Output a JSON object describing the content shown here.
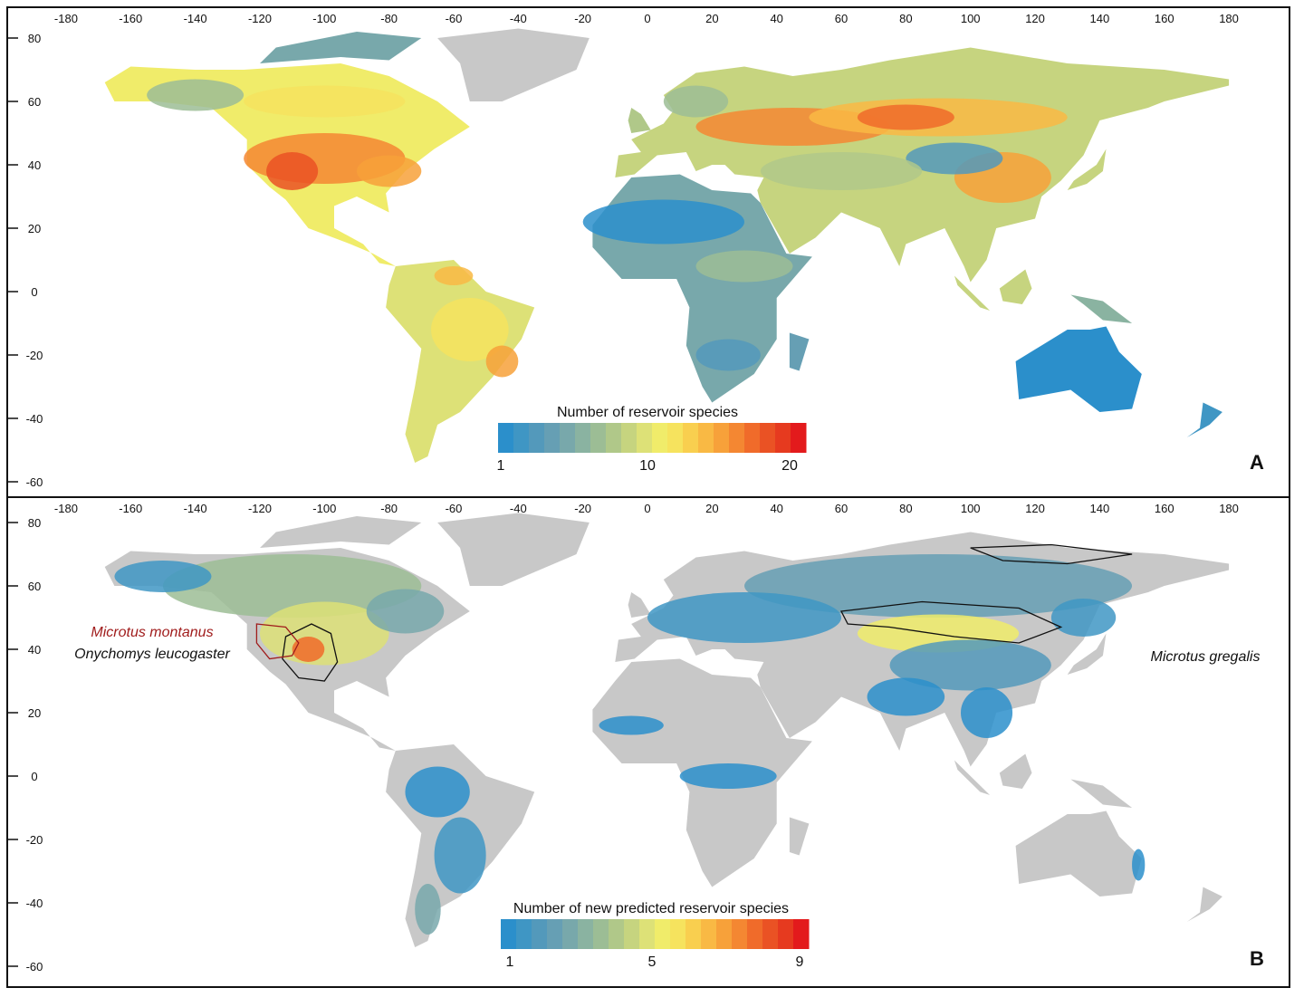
{
  "panels": [
    {
      "letter": "A",
      "legend": {
        "title": "Number of reservoir species",
        "labels": [
          "1",
          "10",
          "20"
        ]
      },
      "species_labels": []
    },
    {
      "letter": "B",
      "legend": {
        "title": "Number of new predicted reservoir species",
        "labels": [
          "1",
          "5",
          "9"
        ]
      },
      "species_labels": [
        {
          "text": "Microtus montanus",
          "color": "#a01c1c"
        },
        {
          "text": "Onychomys leucogaster",
          "color": "#111111"
        },
        {
          "text": "Microtus gregalis",
          "color": "#111111"
        }
      ]
    }
  ],
  "axes": {
    "longitude_ticks": [
      "-180",
      "-160",
      "-140",
      "-120",
      "-100",
      "-80",
      "-60",
      "-40",
      "-20",
      "0",
      "20",
      "40",
      "60",
      "80",
      "100",
      "120",
      "140",
      "160",
      "180"
    ],
    "latitude_ticks": [
      "80",
      "60",
      "40",
      "20",
      "0",
      "-20",
      "-40",
      "-60"
    ]
  },
  "colors": {
    "palette": [
      "#2b8fcb",
      "#3f96c4",
      "#5399bb",
      "#669fb4",
      "#78a8ab",
      "#8ab3a1",
      "#9cbd95",
      "#b0c889",
      "#c6d47f",
      "#dde177",
      "#f0ec6a",
      "#f6e35e",
      "#f9cf4f",
      "#f9b944",
      "#f7a13a",
      "#f48732",
      "#f06b2a",
      "#ea5224",
      "#e63a1f",
      "#e31a1c"
    ],
    "no_data_land": "#c8c8c8",
    "range_outline": "#111111",
    "range_outline_montanus": "#a01c1c"
  }
}
